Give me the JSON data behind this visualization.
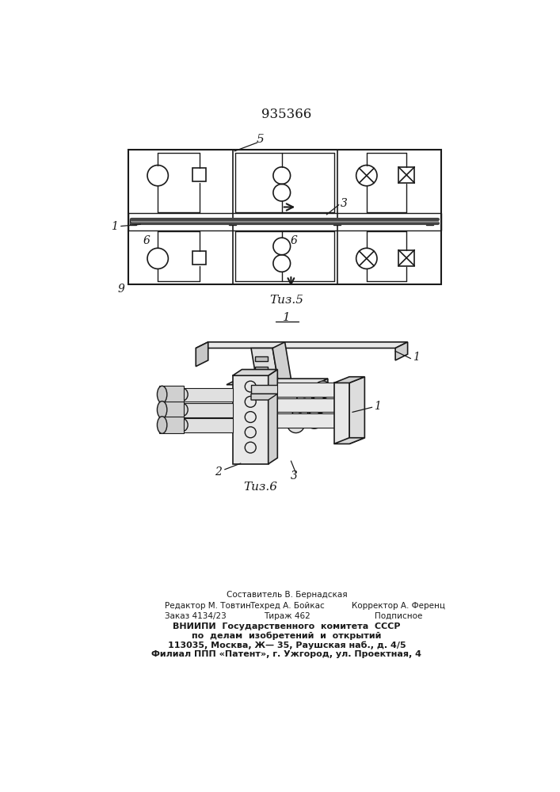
{
  "patent_number": "935366",
  "fig5_label": "Τиз.5",
  "fig6_label": "Τиз.6",
  "label_1": "1",
  "label_2": "2",
  "label_3": "3",
  "label_5": "5",
  "label_6a": "6",
  "label_6b": "6",
  "label_9": "9",
  "label_1b": "1",
  "footer_line1": "Составитель В. Бернадская",
  "footer_line2_left": "Редактор М. Товтин",
  "footer_line2_mid": "Техред А. Бойкас",
  "footer_line2_right": "Корректор А. Ференц",
  "footer_line3_left": "Заказ 4134/23",
  "footer_line3_mid": "Тираж 462",
  "footer_line3_right": "Подписное",
  "footer_line4": "ВНИИПИ  Государственного  комитета  СССР",
  "footer_line5": "по  делам  изобретений  и  открытий",
  "footer_line6": "113035, Москва, Ж— 35, Раушская наб., д. 4/5",
  "footer_line7": "Филиал ППП «Патент», г. Ужгород, ул. Проектная, 4",
  "bg_color": "#ffffff",
  "line_color": "#1a1a1a"
}
